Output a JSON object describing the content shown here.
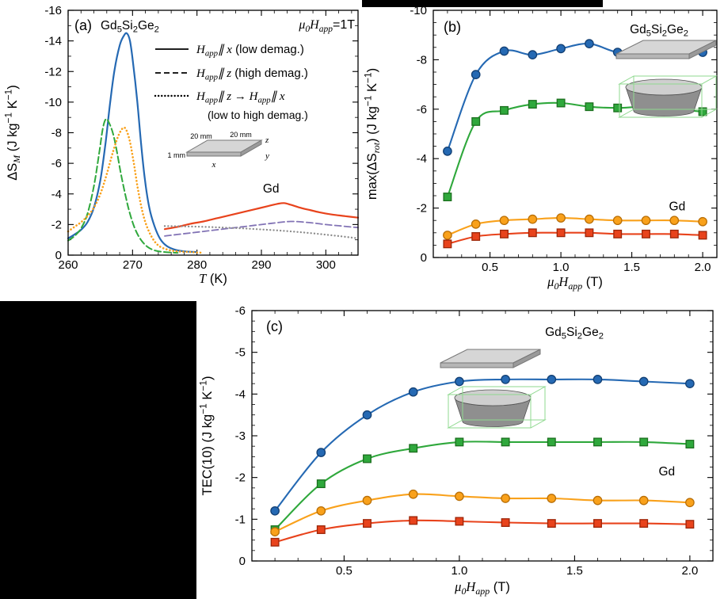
{
  "figure": {
    "background": "#000000",
    "panel_background": "#ffffff"
  },
  "colors": {
    "axis": "#000000",
    "blue": "#2569b3",
    "blue_edge": "#123f73",
    "green": "#2fa83c",
    "green_edge": "#1b6f1e",
    "orange": "#f9a11b",
    "orange_edge": "#b96f07",
    "red": "#e8431c",
    "red_edge": "#9c2508",
    "purple": "#8273b5",
    "gray": "#8c8c8c",
    "inset_gray_top": "#d6d6d6",
    "inset_gray_front": "#b5b5b5",
    "inset_gray_side": "#9a9a9a",
    "wireframe_green": "#8fd98f"
  },
  "chart_data": [
    {
      "id": "a",
      "type": "line",
      "panel_label": "(a)",
      "title_parts": [
        {
          "t": "Gd_{5}Si_{2}Ge_{2}",
          "s": "p"
        }
      ],
      "field_parts": [
        {
          "t": "μ_{0}H_{app}",
          "s": "m"
        },
        {
          "t": "=1T",
          "s": "p"
        }
      ],
      "xlabel_parts": [
        {
          "t": "T",
          "s": "m"
        },
        {
          "t": " (K)",
          "s": "p"
        }
      ],
      "ylabel_parts": [
        {
          "t": "ΔS",
          "s": "p"
        },
        {
          "t": "_{M}",
          "s": "m"
        },
        {
          "t": " (J kg^{−1} K^{−1})",
          "s": "p"
        }
      ],
      "xlim": [
        260,
        305
      ],
      "ylim": [
        0,
        -16
      ],
      "x_major_ticks": {
        "values": [
          260,
          270,
          280,
          290,
          300
        ],
        "labels": [
          "260",
          "270",
          "280",
          "290",
          "300"
        ]
      },
      "x_minor_step": 2,
      "y_major_ticks": {
        "values": [
          0,
          -2,
          -4,
          -6,
          -8,
          -10,
          -12,
          -14,
          -16
        ],
        "labels": [
          "0",
          "-2",
          "-4",
          "-6",
          "-8",
          "-10",
          "-12",
          "-14",
          "-16"
        ]
      },
      "y_minor_step": 1,
      "legend": [
        {
          "line_style": "solid",
          "math": "H_{app}∥ x",
          "note": "(low demag.)"
        },
        {
          "line_style": "dashed",
          "math": "H_{app}∥ z",
          "note": "(high demag.)"
        },
        {
          "line_style": "dotted",
          "math": "H_{app}∥ z → H_{app}∥ x",
          "note": "(low to high demag.)",
          "note_new_line": true
        }
      ],
      "annotations": [
        {
          "parts": [
            {
              "t": "Gd",
              "s": "p"
            }
          ],
          "x": 291.5,
          "y": -4.1,
          "size": 15.5
        }
      ],
      "series": [
        {
          "name": "Gd5Si2Ge2 Happ∥x (low demag.)",
          "color": "blue",
          "dash": "solid",
          "width": 2.2,
          "points": [
            [
              260,
              -1.1
            ],
            [
              261,
              -1.35
            ],
            [
              262,
              -1.65
            ],
            [
              263,
              -2.15
            ],
            [
              264,
              -3.1
            ],
            [
              265,
              -4.9
            ],
            [
              265.8,
              -7.3
            ],
            [
              266.5,
              -9.9
            ],
            [
              267.2,
              -12.1
            ],
            [
              268,
              -13.7
            ],
            [
              268.6,
              -14.3
            ],
            [
              269.1,
              -14.5
            ],
            [
              269.6,
              -14.0
            ],
            [
              270.1,
              -12.5
            ],
            [
              270.7,
              -10.2
            ],
            [
              271.3,
              -7.4
            ],
            [
              271.9,
              -5.0
            ],
            [
              272.6,
              -3.1
            ],
            [
              273.4,
              -1.9
            ],
            [
              274.3,
              -1.05
            ],
            [
              275.3,
              -0.6
            ],
            [
              276.6,
              -0.35
            ],
            [
              278,
              -0.25
            ],
            [
              280,
              -0.2
            ]
          ]
        },
        {
          "name": "Gd5Si2Ge2 Happ∥z (high demag.)",
          "color": "green",
          "dash": "dashed",
          "width": 2.0,
          "points": [
            [
              260,
              -0.95
            ],
            [
              261,
              -1.25
            ],
            [
              262,
              -1.75
            ],
            [
              263,
              -2.7
            ],
            [
              264,
              -4.5
            ],
            [
              264.8,
              -6.6
            ],
            [
              265.4,
              -8.3
            ],
            [
              265.9,
              -8.9
            ],
            [
              266.4,
              -8.6
            ],
            [
              267,
              -7.9
            ],
            [
              267.6,
              -6.7
            ],
            [
              268.2,
              -5.3
            ],
            [
              268.9,
              -3.9
            ],
            [
              269.6,
              -2.7
            ],
            [
              270.4,
              -1.7
            ],
            [
              271.3,
              -1.0
            ],
            [
              272.3,
              -0.55
            ],
            [
              273.5,
              -0.3
            ],
            [
              275,
              -0.2
            ],
            [
              277,
              -0.15
            ]
          ]
        },
        {
          "name": "Gd5Si2Ge2 Happ∥z→Happ∥x",
          "color": "orange",
          "dash": "dotted",
          "width": 2.2,
          "points": [
            [
              260,
              -1.55
            ],
            [
              261,
              -1.85
            ],
            [
              262,
              -2.15
            ],
            [
              263,
              -2.55
            ],
            [
              264,
              -3.1
            ],
            [
              265,
              -4.0
            ],
            [
              266,
              -5.3
            ],
            [
              267,
              -6.8
            ],
            [
              267.8,
              -7.8
            ],
            [
              268.5,
              -8.3
            ],
            [
              269,
              -8.2
            ],
            [
              269.6,
              -7.4
            ],
            [
              270.2,
              -6.0
            ],
            [
              270.8,
              -4.4
            ],
            [
              271.5,
              -2.9
            ],
            [
              272.2,
              -1.9
            ],
            [
              273.1,
              -1.1
            ],
            [
              274.1,
              -0.6
            ],
            [
              275.5,
              -0.35
            ],
            [
              277,
              -0.25
            ],
            [
              279,
              -0.2
            ],
            [
              281,
              -0.15
            ]
          ]
        },
        {
          "name": "Gd Happ∥x (low demag.)",
          "color": "red",
          "dash": "solid",
          "width": 2.2,
          "points": [
            [
              275,
              -1.7
            ],
            [
              277,
              -1.85
            ],
            [
              279,
              -2.05
            ],
            [
              281,
              -2.2
            ],
            [
              283,
              -2.4
            ],
            [
              285,
              -2.6
            ],
            [
              287,
              -2.8
            ],
            [
              289,
              -3.0
            ],
            [
              291,
              -3.2
            ],
            [
              292.5,
              -3.35
            ],
            [
              293.5,
              -3.4
            ],
            [
              294.5,
              -3.3
            ],
            [
              296,
              -3.1
            ],
            [
              297.5,
              -2.95
            ],
            [
              299,
              -2.8
            ],
            [
              301,
              -2.65
            ],
            [
              303,
              -2.55
            ],
            [
              305,
              -2.45
            ]
          ]
        },
        {
          "name": "Gd Happ∥z (high demag.)",
          "color": "purple",
          "dash": "dashed",
          "width": 1.8,
          "points": [
            [
              275,
              -1.25
            ],
            [
              277,
              -1.35
            ],
            [
              279,
              -1.45
            ],
            [
              281,
              -1.55
            ],
            [
              283,
              -1.65
            ],
            [
              285,
              -1.75
            ],
            [
              287,
              -1.85
            ],
            [
              289,
              -1.95
            ],
            [
              291,
              -2.05
            ],
            [
              293,
              -2.15
            ],
            [
              294.5,
              -2.2
            ],
            [
              296,
              -2.18
            ],
            [
              298,
              -2.1
            ],
            [
              300,
              -2.0
            ],
            [
              302,
              -1.92
            ],
            [
              305,
              -1.8
            ]
          ]
        },
        {
          "name": "Gd Happ∥z→Happ∥x",
          "color": "gray",
          "dash": "dotted",
          "width": 1.9,
          "points": [
            [
              275,
              -1.9
            ],
            [
              278,
              -1.88
            ],
            [
              281,
              -1.85
            ],
            [
              284,
              -1.8
            ],
            [
              287,
              -1.75
            ],
            [
              290,
              -1.68
            ],
            [
              293,
              -1.6
            ],
            [
              296,
              -1.5
            ],
            [
              299,
              -1.38
            ],
            [
              302,
              -1.25
            ],
            [
              305,
              -1.1
            ]
          ]
        }
      ],
      "inset": {
        "dims": [
          "20 mm",
          "20 mm",
          "1 mm"
        ],
        "axes": [
          "x",
          "y",
          "z"
        ]
      }
    },
    {
      "id": "b",
      "type": "scatter",
      "panel_label": "(b)",
      "title_parts": [
        {
          "t": "Gd_{5}Si_{2}Ge_{2}",
          "s": "p"
        }
      ],
      "xlabel_parts": [
        {
          "t": "μ_{0}H_{app}",
          "s": "m"
        },
        {
          "t": " (T)",
          "s": "p"
        }
      ],
      "ylabel_parts": [
        {
          "t": "max(ΔS",
          "s": "p"
        },
        {
          "t": "_{rot}",
          "s": "m"
        },
        {
          "t": ") (J kg^{−1} K^{−1})",
          "s": "p"
        }
      ],
      "xlim": [
        0.1,
        2.1
      ],
      "ylim": [
        0,
        -10
      ],
      "x_major_ticks": {
        "values": [
          0.5,
          1.0,
          1.5,
          2.0
        ],
        "labels": [
          "0.5",
          "1.0",
          "1.5",
          "2.0"
        ]
      },
      "x_minor_step": 0.1,
      "y_major_ticks": {
        "values": [
          0,
          -2,
          -4,
          -6,
          -8,
          -10
        ],
        "labels": [
          "0",
          "-2",
          "-4",
          "-6",
          "-8",
          "-10"
        ]
      },
      "y_minor_step": 0.5,
      "x": [
        0.2,
        0.4,
        0.6,
        0.8,
        1.0,
        1.2,
        1.4,
        1.6,
        1.8,
        2.0
      ],
      "series": [
        {
          "name": "Gd5Si2Ge2 plate (Happ∥x)",
          "color": "blue",
          "edge": "blue_edge",
          "marker": "circle",
          "values": [
            -4.3,
            -7.4,
            -8.35,
            -8.2,
            -8.45,
            -8.65,
            -8.3,
            -8.35,
            -8.3,
            -8.3
          ]
        },
        {
          "name": "Gd5Si2Ge2 cylinder",
          "color": "green",
          "edge": "green_edge",
          "marker": "square",
          "values": [
            -2.45,
            -5.5,
            -5.95,
            -6.2,
            -6.25,
            -6.1,
            -6.05,
            -6.1,
            -6.0,
            -5.9
          ]
        },
        {
          "name": "Gd plate",
          "color": "orange",
          "edge": "orange_edge",
          "marker": "circle",
          "values": [
            -0.9,
            -1.35,
            -1.5,
            -1.55,
            -1.6,
            -1.55,
            -1.5,
            -1.5,
            -1.5,
            -1.45
          ]
        },
        {
          "name": "Gd cylinder",
          "color": "red",
          "edge": "red_edge",
          "marker": "square",
          "values": [
            -0.55,
            -0.85,
            -0.95,
            -1.0,
            -1.0,
            -1.0,
            -0.95,
            -0.95,
            -0.95,
            -0.9
          ]
        }
      ],
      "annotations": [
        {
          "parts": [
            {
              "t": "Gd",
              "s": "p"
            }
          ],
          "x": 1.82,
          "y": -1.9,
          "size": 15.5
        }
      ]
    },
    {
      "id": "c",
      "type": "scatter",
      "panel_label": "(c)",
      "title_parts": [
        {
          "t": "Gd_{5}Si_{2}Ge_{2}",
          "s": "p"
        }
      ],
      "xlabel_parts": [
        {
          "t": "μ_{0}H_{app}",
          "s": "m"
        },
        {
          "t": " (T)",
          "s": "p"
        }
      ],
      "ylabel_parts": [
        {
          "t": "TEC(10) (J kg^{−1} K^{−1})",
          "s": "p"
        }
      ],
      "xlim": [
        0.1,
        2.1
      ],
      "ylim": [
        0,
        -6
      ],
      "x_major_ticks": {
        "values": [
          0.5,
          1.0,
          1.5,
          2.0
        ],
        "labels": [
          "0.5",
          "1.0",
          "1.5",
          "2.0"
        ]
      },
      "x_minor_step": 0.1,
      "y_major_ticks": {
        "values": [
          0,
          -1,
          -2,
          -3,
          -4,
          -5,
          -6
        ],
        "labels": [
          "0",
          "-1",
          "-2",
          "-3",
          "-4",
          "-5",
          "-6"
        ]
      },
      "y_minor_step": 0.25,
      "x": [
        0.2,
        0.4,
        0.6,
        0.8,
        1.0,
        1.2,
        1.4,
        1.6,
        1.8,
        2.0
      ],
      "series": [
        {
          "name": "Gd5Si2Ge2 plate (Happ∥x)",
          "color": "blue",
          "edge": "blue_edge",
          "marker": "circle",
          "values": [
            -1.2,
            -2.6,
            -3.5,
            -4.05,
            -4.3,
            -4.35,
            -4.35,
            -4.35,
            -4.3,
            -4.25
          ]
        },
        {
          "name": "Gd5Si2Ge2 cylinder",
          "color": "green",
          "edge": "green_edge",
          "marker": "square",
          "values": [
            -0.75,
            -1.85,
            -2.45,
            -2.7,
            -2.85,
            -2.85,
            -2.85,
            -2.85,
            -2.85,
            -2.8
          ]
        },
        {
          "name": "Gd plate",
          "color": "orange",
          "edge": "orange_edge",
          "marker": "circle",
          "values": [
            -0.7,
            -1.2,
            -1.45,
            -1.6,
            -1.55,
            -1.5,
            -1.5,
            -1.45,
            -1.45,
            -1.4
          ]
        },
        {
          "name": "Gd cylinder",
          "color": "red",
          "edge": "red_edge",
          "marker": "square",
          "values": [
            -0.45,
            -0.75,
            -0.9,
            -0.97,
            -0.95,
            -0.92,
            -0.9,
            -0.9,
            -0.9,
            -0.88
          ]
        }
      ],
      "annotations": [
        {
          "parts": [
            {
              "t": "Gd",
              "s": "p"
            }
          ],
          "x": 1.9,
          "y": -2.05,
          "size": 15.5
        }
      ]
    }
  ]
}
